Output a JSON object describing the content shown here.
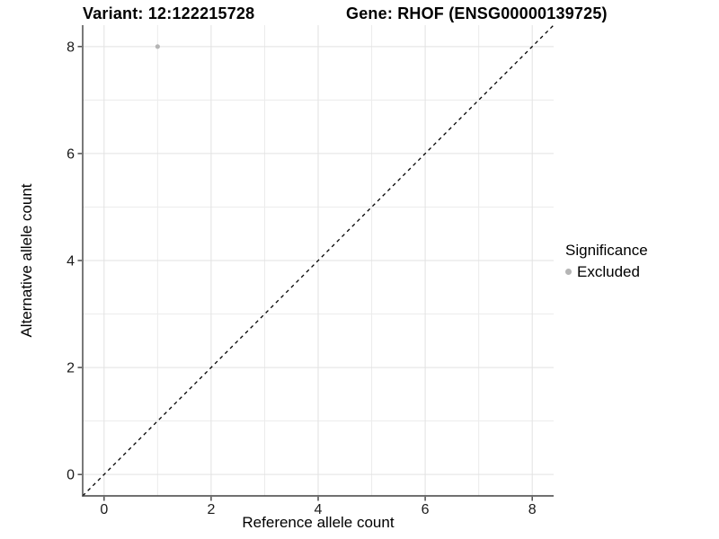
{
  "page": {
    "background": "#ffffff"
  },
  "chart_data": {
    "type": "scatter",
    "title_left": "Variant: 12:122215728",
    "title_right": "Gene: RHOF (ENSG00000139725)",
    "xlabel": "Reference allele count",
    "ylabel": "Alternative allele count",
    "xlim": [
      -0.4,
      8.4
    ],
    "ylim": [
      -0.4,
      8.4
    ],
    "x_ticks": [
      0,
      2,
      4,
      6,
      8
    ],
    "y_ticks": [
      0,
      2,
      4,
      6,
      8
    ],
    "x_tick_labels": [
      "0",
      "2",
      "4",
      "6",
      "8"
    ],
    "y_tick_labels": [
      "0",
      "2",
      "4",
      "6",
      "8"
    ],
    "x_minor_ticks": [
      1,
      3,
      5,
      7
    ],
    "y_minor_ticks": [
      1,
      3,
      5,
      7
    ],
    "grid": true,
    "reference_line": {
      "type": "identity",
      "style": "dashed",
      "color": "#000000"
    },
    "series": [
      {
        "name": "Excluded",
        "color": "#b5b5b5",
        "points": [
          {
            "x": 1,
            "y": 8
          }
        ]
      }
    ],
    "legend": {
      "title": "Significance",
      "position": "right",
      "entries": [
        {
          "label": "Excluded",
          "color": "#b5b5b5"
        }
      ]
    },
    "colors": {
      "grid_major": "#e2e2e2",
      "grid_minor": "#ececec",
      "axis_line": "#404040",
      "tick_label": "#1a1a1a"
    }
  }
}
